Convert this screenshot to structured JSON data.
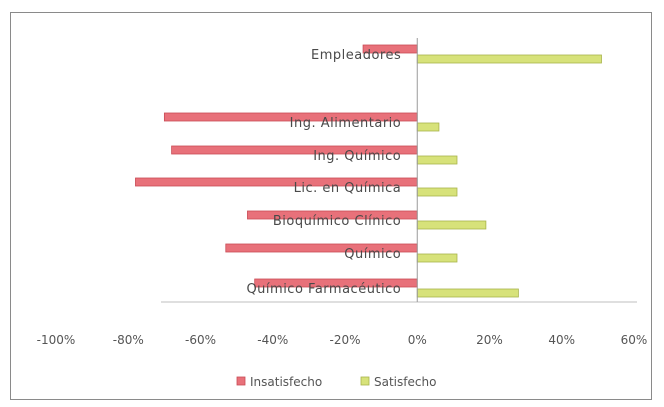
{
  "chart_data": {
    "type": "bar",
    "orientation": "horizontal",
    "categories": [
      "Empleadores",
      "Ing. Alimentario",
      "Ing. Químico",
      "Lic. en Química",
      "Bioquímico Clínico",
      "Químico",
      "Químico Farmacéutico"
    ],
    "series": [
      {
        "name": "Insatisfecho",
        "color": "#e8717a",
        "values": [
          -15,
          -70,
          -68,
          -78,
          -47,
          -53,
          -45
        ]
      },
      {
        "name": "Satisfecho",
        "color": "#d7e27a",
        "values": [
          51,
          6,
          11,
          11,
          19,
          11,
          28
        ]
      }
    ],
    "x_ticks": [
      "-100%",
      "-80%",
      "-60%",
      "-40%",
      "-20%",
      "0%",
      "20%",
      "40%",
      "60%"
    ],
    "xlim": [
      -100,
      60
    ],
    "grid": false,
    "legend_position": "bottom"
  }
}
